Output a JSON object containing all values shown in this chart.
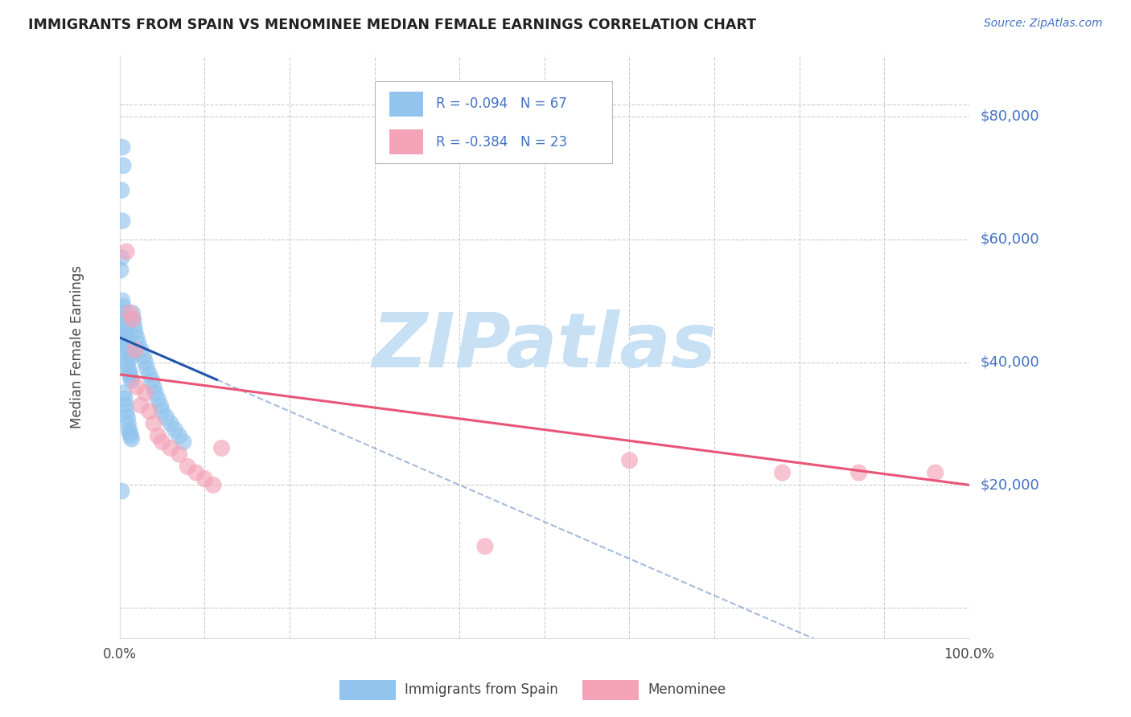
{
  "title": "IMMIGRANTS FROM SPAIN VS MENOMINEE MEDIAN FEMALE EARNINGS CORRELATION CHART",
  "source": "Source: ZipAtlas.com",
  "ylabel": "Median Female Earnings",
  "ylim": [
    -5000,
    90000
  ],
  "xlim": [
    0.0,
    1.0
  ],
  "blue_R": -0.094,
  "blue_N": 67,
  "pink_R": -0.384,
  "pink_N": 23,
  "blue_color": "#93C4ED",
  "pink_color": "#F4A3B8",
  "blue_line_color": "#2255AA",
  "pink_line_color": "#E85577",
  "grid_color": "#CCCCCC",
  "axis_label_color": "#4472C4",
  "title_color": "#222222",
  "text_color": "#444444",
  "watermark_color": "#C8E0F4",
  "ytick_vals": [
    20000,
    40000,
    60000,
    80000
  ],
  "ytick_labels": [
    "$20,000",
    "$40,000",
    "$60,000",
    "$80,000"
  ],
  "blue_x": [
    0.005,
    0.006,
    0.007,
    0.008,
    0.009,
    0.01,
    0.011,
    0.012,
    0.013,
    0.014,
    0.005,
    0.006,
    0.007,
    0.008,
    0.009,
    0.01,
    0.011,
    0.012,
    0.013,
    0.014,
    0.005,
    0.006,
    0.007,
    0.008,
    0.009,
    0.01,
    0.011,
    0.012,
    0.013,
    0.014,
    0.003,
    0.004,
    0.005,
    0.006,
    0.007,
    0.008,
    0.009,
    0.01,
    0.015,
    0.016,
    0.017,
    0.018,
    0.02,
    0.022,
    0.025,
    0.028,
    0.03,
    0.032,
    0.035,
    0.038,
    0.04,
    0.042,
    0.045,
    0.048,
    0.05,
    0.055,
    0.06,
    0.065,
    0.07,
    0.075,
    0.003,
    0.004,
    0.002,
    0.003,
    0.002,
    0.001,
    0.002
  ],
  "blue_y": [
    44000,
    43000,
    42000,
    41000,
    40000,
    39000,
    38500,
    38000,
    37500,
    37000,
    47000,
    46000,
    45000,
    44000,
    43500,
    43000,
    42500,
    42000,
    41500,
    41000,
    35000,
    34000,
    33000,
    32000,
    31000,
    30000,
    29000,
    28500,
    28000,
    27500,
    50000,
    49000,
    48000,
    47000,
    46000,
    45000,
    44000,
    43000,
    48000,
    47000,
    46000,
    45000,
    44000,
    43000,
    42000,
    41000,
    40000,
    39000,
    38000,
    37000,
    36000,
    35000,
    34000,
    33000,
    32000,
    31000,
    30000,
    29000,
    28000,
    27000,
    75000,
    72000,
    68000,
    63000,
    57000,
    55000,
    19000
  ],
  "pink_x": [
    0.008,
    0.012,
    0.015,
    0.018,
    0.02,
    0.025,
    0.03,
    0.035,
    0.04,
    0.045,
    0.05,
    0.06,
    0.07,
    0.08,
    0.09,
    0.1,
    0.11,
    0.12,
    0.43,
    0.6,
    0.78,
    0.87,
    0.96
  ],
  "pink_y": [
    58000,
    48000,
    47000,
    42000,
    36000,
    33000,
    35000,
    32000,
    30000,
    28000,
    27000,
    26000,
    25000,
    23000,
    22000,
    21000,
    20000,
    26000,
    10000,
    24000,
    22000,
    22000,
    22000
  ]
}
